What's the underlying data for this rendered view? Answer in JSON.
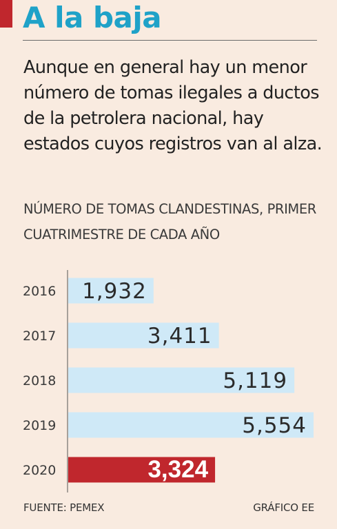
{
  "header": {
    "title": "A la baja",
    "intro": "Aunque en general hay un menor número de tomas ilegales a ductos de la petrolera nacional, hay estados cuyos registros van al alza."
  },
  "chart_data": {
    "type": "bar",
    "orientation": "horizontal",
    "title": "NÚMERO DE TOMAS CLANDESTINAS, PRIMER CUATRIMESTRE DE CADA AÑO",
    "categories": [
      "2016",
      "2017",
      "2018",
      "2019",
      "2020"
    ],
    "values": [
      1932,
      3411,
      5119,
      5554,
      3324
    ],
    "value_labels": [
      "1,932",
      "3,411",
      "5,119",
      "5,554",
      "3,324"
    ],
    "xlim": [
      0,
      5554
    ],
    "grid": false,
    "colors": {
      "default": "#cfe9f7",
      "highlight": "#c0272d",
      "label": "#2b2b2b",
      "highlight_label": "#ffffff"
    },
    "highlight_index": 4
  },
  "footer": {
    "source": "FUENTE: PEMEX",
    "credit": "GRÁFICO EE"
  }
}
